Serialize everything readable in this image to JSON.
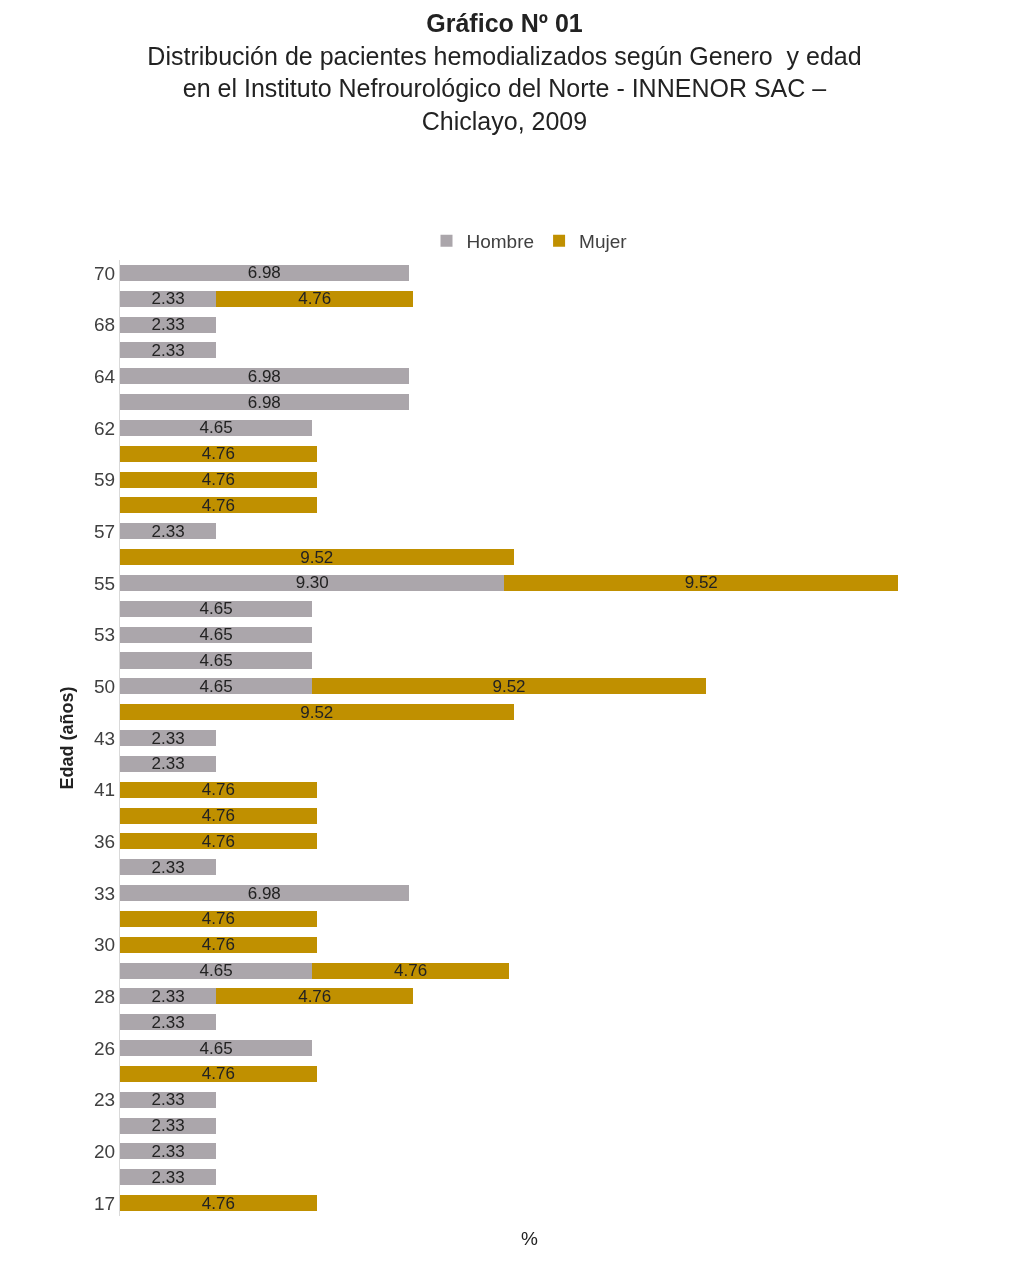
{
  "chart_data": {
    "type": "bar",
    "orientation": "horizontal",
    "stacked": true,
    "title": "Gráfico Nº 01",
    "subtitle": "Distribución de pacientes hemodializados según Genero  y edad\nen el Instituto Nefrourológico del Norte - INNENOR SAC –\nChiclayo, 2009",
    "xlabel": "%",
    "ylabel": "Edad (años)",
    "categories": [
      "70",
      null,
      "68",
      null,
      "64",
      null,
      "62",
      null,
      "59",
      null,
      "57",
      null,
      "55",
      null,
      "53",
      null,
      "50",
      null,
      "43",
      null,
      "41",
      null,
      "36",
      null,
      "33",
      null,
      "30",
      null,
      "28",
      null,
      "26",
      null,
      "23",
      null,
      "20",
      null,
      "17"
    ],
    "series": [
      {
        "name": "Hombre",
        "color": "#aba6ab",
        "values": [
          6.98,
          2.33,
          2.33,
          2.33,
          6.98,
          6.98,
          4.65,
          null,
          null,
          null,
          2.33,
          null,
          9.3,
          4.65,
          4.65,
          4.65,
          4.65,
          null,
          2.33,
          2.33,
          null,
          null,
          null,
          2.33,
          6.98,
          null,
          null,
          4.65,
          2.33,
          2.33,
          4.65,
          null,
          2.33,
          2.33,
          2.33,
          2.33,
          null
        ],
        "value_labels": [
          "6.98",
          "2.33",
          "2.33",
          "2.33",
          "6.98",
          "6.98",
          "4.65",
          null,
          null,
          null,
          "2.33",
          null,
          "9.30",
          "4.65",
          "4.65",
          "4.65",
          "4.65",
          null,
          "2.33",
          "2.33",
          null,
          null,
          null,
          "2.33",
          "6.98",
          null,
          null,
          "4.65",
          "2.33",
          "2.33",
          "4.65",
          null,
          "2.33",
          "2.33",
          "2.33",
          "2.33",
          null
        ]
      },
      {
        "name": "Mujer",
        "color": "#c09000",
        "values": [
          null,
          4.76,
          null,
          null,
          null,
          null,
          null,
          4.76,
          4.76,
          4.76,
          null,
          9.52,
          9.52,
          null,
          null,
          null,
          9.52,
          9.52,
          null,
          null,
          4.76,
          4.76,
          4.76,
          null,
          null,
          4.76,
          4.76,
          4.76,
          4.76,
          null,
          null,
          4.76,
          null,
          null,
          null,
          null,
          4.76
        ],
        "value_labels": [
          null,
          "4.76",
          null,
          null,
          null,
          null,
          null,
          "4.76",
          "4.76",
          "4.76",
          null,
          "9.52",
          "9.52",
          null,
          null,
          null,
          "9.52",
          "9.52",
          null,
          null,
          "4.76",
          "4.76",
          "4.76",
          null,
          null,
          "4.76",
          "4.76",
          "4.76",
          "4.76",
          null,
          null,
          "4.76",
          null,
          null,
          null,
          null,
          "4.76"
        ]
      }
    ],
    "tick_labels": "y",
    "legend": "top"
  }
}
